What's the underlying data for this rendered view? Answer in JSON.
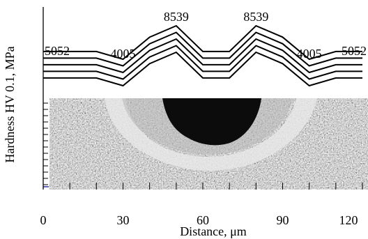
{
  "chart_data": {
    "type": "line",
    "title": "",
    "xlabel": "Distance, μm",
    "ylabel": "Hardness HV 0.1, MPa",
    "xlim": [
      0,
      120
    ],
    "x_ticks": [
      0,
      30,
      60,
      90,
      120
    ],
    "x": [
      0,
      20,
      30,
      40,
      50,
      60,
      70,
      80,
      90,
      100,
      110,
      120
    ],
    "series": [
      {
        "values": [
          5052,
          5052,
          4005,
          7000,
          8539,
          5052,
          5052,
          8539,
          7000,
          4005,
          5052,
          5052
        ]
      },
      {
        "values": [
          5052,
          5052,
          4005,
          7000,
          8539,
          5052,
          5052,
          8539,
          7000,
          4005,
          5052,
          5052
        ]
      },
      {
        "values": [
          5052,
          5052,
          4005,
          7000,
          8539,
          5052,
          5052,
          8539,
          7000,
          4005,
          5052,
          5052
        ]
      },
      {
        "values": [
          5052,
          5052,
          4005,
          7000,
          8539,
          5052,
          5052,
          8539,
          7000,
          4005,
          5052,
          5052
        ]
      },
      {
        "values": [
          5052,
          5052,
          4005,
          7000,
          8539,
          5052,
          5052,
          8539,
          7000,
          4005,
          5052,
          5052
        ]
      }
    ],
    "data_labels": [
      {
        "x": 0,
        "text": "5052"
      },
      {
        "x": 30,
        "text": "4005"
      },
      {
        "x": 50,
        "text": "8539"
      },
      {
        "x": 80,
        "text": "8539"
      },
      {
        "x": 100,
        "text": "4005"
      },
      {
        "x": 120,
        "text": "5052"
      }
    ],
    "image_inset": "metallographic micrograph of indentation cross-section"
  }
}
